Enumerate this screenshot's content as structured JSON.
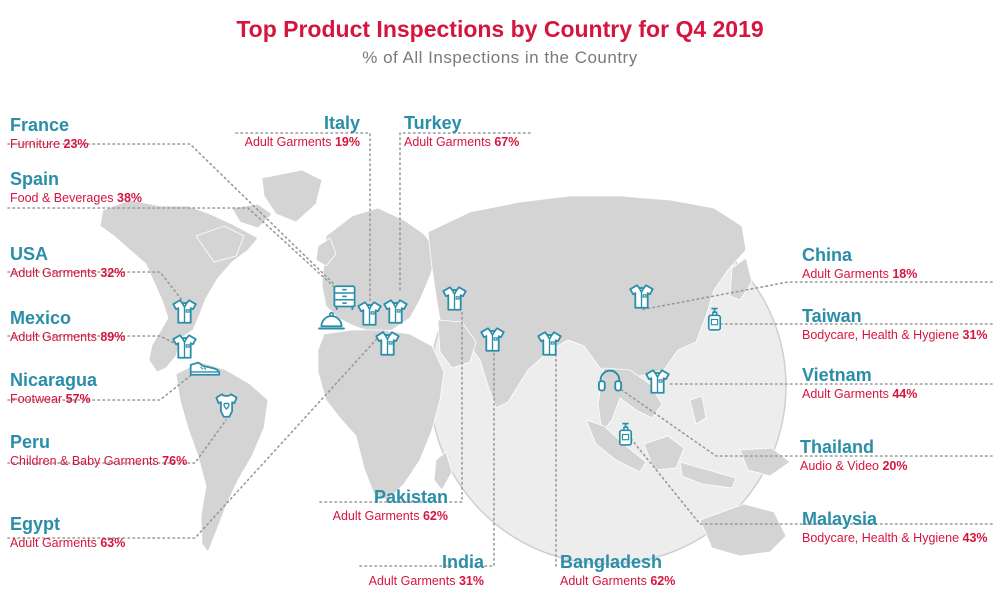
{
  "title": "Top Product Inspections by Country for Q4 2019",
  "subtitle": "% of All Inspections in the Country",
  "countries": {
    "france": {
      "name": "France",
      "category": "Furniture",
      "value": "23%",
      "icon": "furniture-icon"
    },
    "spain": {
      "name": "Spain",
      "category": "Food & Beverages",
      "value": "38%",
      "icon": "food-tray-icon"
    },
    "usa": {
      "name": "USA",
      "category": "Adult Garments",
      "value": "32%",
      "icon": "shirt-icon"
    },
    "mexico": {
      "name": "Mexico",
      "category": "Adult Garments",
      "value": "89%",
      "icon": "shirt-icon"
    },
    "nicaragua": {
      "name": "Nicaragua",
      "category": "Footwear",
      "value": "57%",
      "icon": "shoe-icon"
    },
    "peru": {
      "name": "Peru",
      "category": "Children & Baby Garments",
      "value": "76%",
      "icon": "baby-onesie-icon"
    },
    "egypt": {
      "name": "Egypt",
      "category": "Adult Garments",
      "value": "63%",
      "icon": "shirt-icon"
    },
    "italy": {
      "name": "Italy",
      "category": "Adult Garments",
      "value": "19%",
      "icon": "shirt-icon"
    },
    "turkey": {
      "name": "Turkey",
      "category": "Adult Garments",
      "value": "67%",
      "icon": "shirt-icon"
    },
    "pakistan": {
      "name": "Pakistan",
      "category": "Adult Garments",
      "value": "62%",
      "icon": "shirt-icon"
    },
    "india": {
      "name": "India",
      "category": "Adult Garments",
      "value": "31%",
      "icon": "shirt-icon"
    },
    "bangladesh": {
      "name": "Bangladesh",
      "category": "Adult Garments",
      "value": "62%",
      "icon": "shirt-icon"
    },
    "china": {
      "name": "China",
      "category": "Adult Garments",
      "value": "18%",
      "icon": "shirt-icon"
    },
    "taiwan": {
      "name": "Taiwan",
      "category": "Bodycare, Health & Hygiene",
      "value": "31%",
      "icon": "pump-bottle-icon"
    },
    "vietnam": {
      "name": "Vietnam",
      "category": "Adult Garments",
      "value": "44%",
      "icon": "shirt-icon"
    },
    "thailand": {
      "name": "Thailand",
      "category": "Audio & Video",
      "value": "20%",
      "icon": "headphones-icon"
    },
    "malaysia": {
      "name": "Malaysia",
      "category": "Bodycare, Health & Hygiene",
      "value": "43%",
      "icon": "pump-bottle-icon"
    }
  },
  "colors": {
    "title": "#d6153e",
    "country_name": "#2a8ea8",
    "land": "#d4d4d4",
    "icon": "#2a8ea8"
  }
}
